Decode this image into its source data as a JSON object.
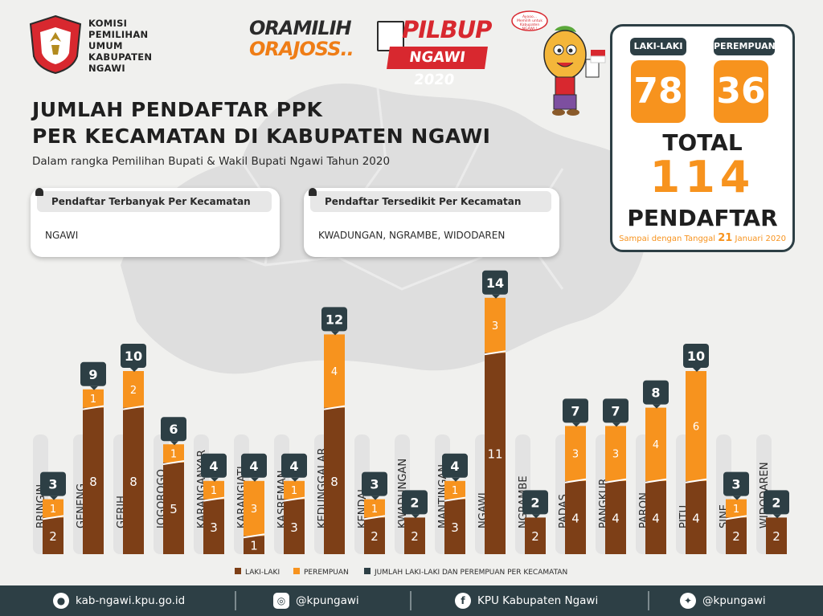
{
  "header": {
    "kpu_lines": [
      "KOMISI",
      "PEMILIHAN",
      "UMUM",
      "KABUPATEN",
      "NGAWI"
    ],
    "seal_top": "KOMISI",
    "seal_bottom": "PEMILIHAN UMUM",
    "slogan_line1": "ORAMILIH",
    "slogan_line2": "ORAJOSS..",
    "pilbup": "PILBUP",
    "pilbup_year": "NGAWI 2020",
    "mascot_bubble": [
      "Ayooo...",
      "Memilih untuk",
      "Kabupaten",
      "NGAWI !"
    ]
  },
  "title_line1": "JUMLAH PENDAFTAR PPK",
  "title_line2": "PER KECAMATAN DI KABUPATEN NGAWI",
  "subtitle": "Dalam rangka Pemilihan Bupati & Wakil Bupati Ngawi Tahun 2020",
  "most": {
    "label": "Pendaftar Terbanyak Per Kecamatan",
    "value": "NGAWI"
  },
  "least": {
    "label": "Pendaftar Tersedikit Per Kecamatan",
    "value": "KWADUNGAN, NGRAMBE, WIDODAREN"
  },
  "stats": {
    "male_label": "LAKI-LAKI",
    "male_value": "78",
    "female_label": "PEREMPUAN",
    "female_value": "36",
    "total_label": "TOTAL",
    "total_value": "114",
    "unit_label": "PENDAFTAR",
    "note_prefix": "Sampai dengan Tanggal",
    "note_day": "21",
    "note_suffix": "Januari 2020"
  },
  "colors": {
    "male": "#7d3f17",
    "female": "#f7931e",
    "total": "#2d3f45",
    "label_bar": "#e3e3e3"
  },
  "chart_data": {
    "type": "bar",
    "stacked": true,
    "categories": [
      "BRINGIN",
      "GENENG",
      "GERIH",
      "JOGOROGO",
      "KARANGANYAR",
      "KARANGJATI",
      "KASREMAN",
      "KEDUNGGALAR",
      "KENDAL",
      "KWADUNGAN",
      "MANTINGAN",
      "NGAWI",
      "NGRAMBE",
      "PADAS",
      "PANGKUR",
      "PARON",
      "PITU",
      "SINE",
      "WIDODAREN"
    ],
    "series": [
      {
        "name": "LAKI-LAKI",
        "values": [
          2,
          8,
          8,
          5,
          3,
          1,
          3,
          8,
          2,
          2,
          3,
          11,
          2,
          4,
          4,
          4,
          4,
          2,
          2
        ]
      },
      {
        "name": "PEREMPUAN",
        "values": [
          1,
          1,
          2,
          1,
          1,
          3,
          1,
          4,
          1,
          0,
          1,
          3,
          0,
          3,
          3,
          4,
          6,
          1,
          0
        ]
      }
    ],
    "totals": [
      3,
      9,
      10,
      6,
      4,
      4,
      4,
      12,
      3,
      2,
      4,
      14,
      2,
      7,
      7,
      8,
      10,
      3,
      2
    ],
    "legend": [
      "LAKI-LAKI",
      "PEREMPUAN",
      "JUMLAH LAKI-LAKI DAN PEREMPUAN PER KECAMATAN"
    ],
    "legend_position": "bottom"
  },
  "footer": {
    "website": "kab-ngawi.kpu.go.id",
    "instagram": "@kpungawi",
    "facebook": "KPU Kabupaten Ngawi",
    "twitter": "@kpungawi",
    "icons": [
      "globe-icon",
      "instagram-icon",
      "facebook-icon",
      "twitter-icon"
    ]
  }
}
